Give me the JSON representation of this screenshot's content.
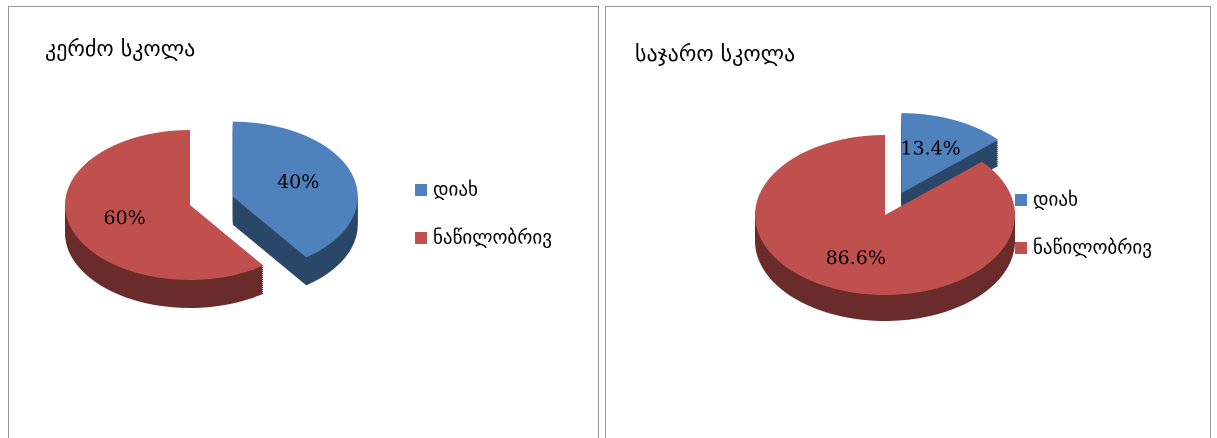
{
  "chart_data": [
    {
      "type": "pie",
      "title": "კერძო სკოლა",
      "categories": [
        "დიახ",
        "ნაწილობრივ"
      ],
      "values": [
        40,
        60
      ],
      "value_labels": [
        "40%",
        "60%"
      ],
      "colors": [
        "#4f81bd",
        "#c0504d"
      ],
      "legend": "right"
    },
    {
      "type": "pie",
      "title": "საჯარო  სკოლა",
      "categories": [
        "დიახ",
        "ნაწილობრივ"
      ],
      "values": [
        13.4,
        86.6
      ],
      "value_labels": [
        "13.4%",
        "86.6%"
      ],
      "colors": [
        "#4f81bd",
        "#c0504d"
      ],
      "legend": "right"
    }
  ]
}
